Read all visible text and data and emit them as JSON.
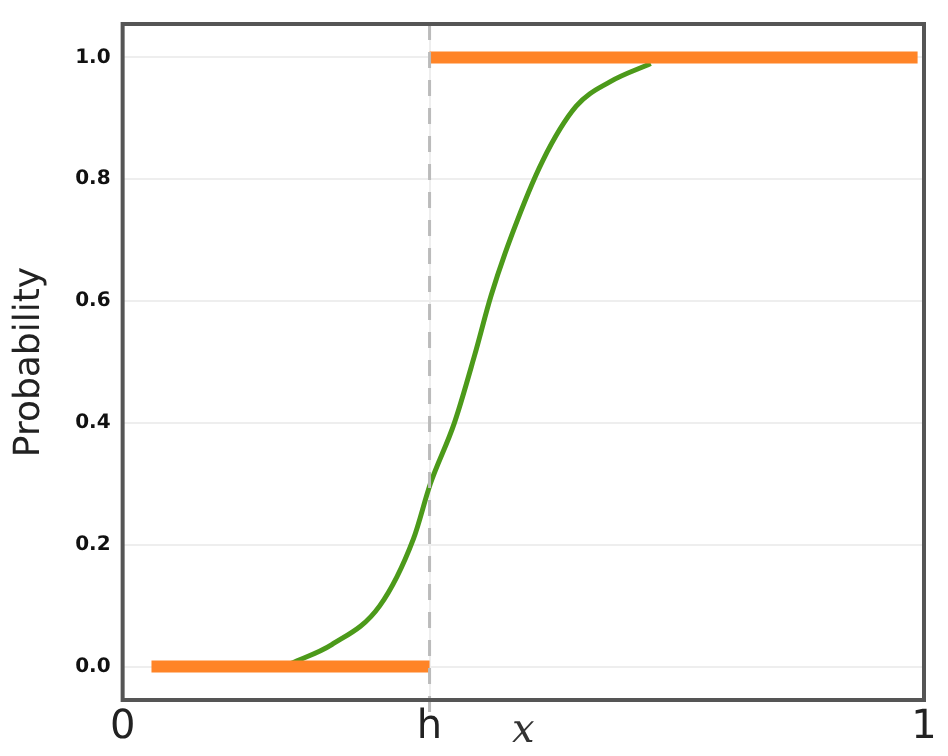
{
  "chart_data": {
    "type": "line",
    "xlabel": "x",
    "ylabel": "Probability",
    "xlim": [
      0,
      1
    ],
    "xticks": [
      0,
      {
        "value": 0.383,
        "label": "h"
      },
      1
    ],
    "ylim": [
      -0.055,
      1.055
    ],
    "yticks": [
      {
        "value": 0,
        "label": "0.0"
      },
      {
        "value": 0.2,
        "label": "0.2"
      },
      {
        "value": 0.4,
        "label": "0.4"
      },
      {
        "value": 0.6,
        "label": "0.6"
      },
      {
        "value": 0.8,
        "label": "0.8"
      },
      {
        "value": 1,
        "label": "1.0"
      }
    ],
    "grid": true,
    "legend": false,
    "marker": "none",
    "series": [
      {
        "color": "#ff8427",
        "x": [
          0.036,
          0.383
        ],
        "values": [
          0,
          0
        ]
      },
      {
        "color": "#ff8427",
        "x": [
          0.383,
          0.992
        ],
        "values": [
          1,
          1
        ]
      },
      {
        "color": "#4c9a1a",
        "x": [
          0.21,
          0.261,
          0.321,
          0.363,
          0.384,
          0.414,
          0.439,
          0.46,
          0.486,
          0.524,
          0.566,
          0.608,
          0.659
        ],
        "values": [
          0.005,
          0.036,
          0.1,
          0.21,
          0.3,
          0.4,
          0.51,
          0.61,
          0.71,
          0.83,
          0.92,
          0.96,
          0.99
        ]
      }
    ],
    "ref_lines": [
      {
        "axis": "x",
        "value": 0.383,
        "color": "#bbbbbb",
        "line_style": "dashed"
      }
    ]
  }
}
